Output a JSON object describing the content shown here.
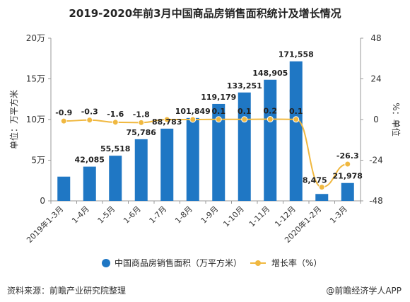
{
  "chart_data": {
    "type": "bar+line",
    "title": "2019-2020年前3月中国商品房销售面积统计及增长情况",
    "categories": [
      "2019年1-3月",
      "1-4月",
      "1-5月",
      "1-6月",
      "1-7月",
      "1-8月",
      "1-9月",
      "1-10月",
      "1-11月",
      "1-12月",
      "2020年1-2月",
      "1-3月"
    ],
    "series": [
      {
        "name": "中国商品房销售面积（万平方米）",
        "type": "bar",
        "axis": "left",
        "color": "#1f77c4",
        "values": [
          29800,
          42085,
          55518,
          75786,
          88783,
          101849,
          119179,
          133251,
          148905,
          171558,
          8475,
          21978
        ],
        "labels": [
          "",
          "42,085",
          "55,518",
          "75,786",
          "88,783",
          "101,849",
          "119,179",
          "133,251",
          "148,905",
          "171,558",
          "8,475",
          "21,978"
        ]
      },
      {
        "name": "增长率（%）",
        "type": "line",
        "axis": "right",
        "color": "#f0b840",
        "values": [
          -0.9,
          -0.3,
          -1.6,
          -1.8,
          0,
          0,
          0.1,
          0.1,
          0.2,
          0.1,
          -39.9,
          -26.3
        ],
        "labels": [
          "-0.9",
          "-0.3",
          "-1.6",
          "-1.8",
          "",
          "",
          "0.1",
          "0.1",
          "0.2",
          "0.1",
          "",
          "-26.3"
        ]
      }
    ],
    "y_left": {
      "label": "单位：万平方米",
      "ylim": [
        0,
        200000
      ],
      "ticks": [
        0,
        50000,
        100000,
        150000,
        200000
      ],
      "tick_labels": [
        "0",
        "5万",
        "10万",
        "15万",
        "20万"
      ]
    },
    "y_right": {
      "label": "%：单位",
      "ylim": [
        -48,
        48
      ],
      "ticks": [
        -48,
        -24,
        0,
        24,
        48
      ],
      "tick_labels": [
        "-48",
        "-24",
        "0",
        "24",
        "48"
      ]
    },
    "grid": false,
    "legend_position": "bottom"
  },
  "footer": {
    "source": "资料来源：前瞻产业研究院整理",
    "copyright": "@前瞻经济学人APP"
  }
}
